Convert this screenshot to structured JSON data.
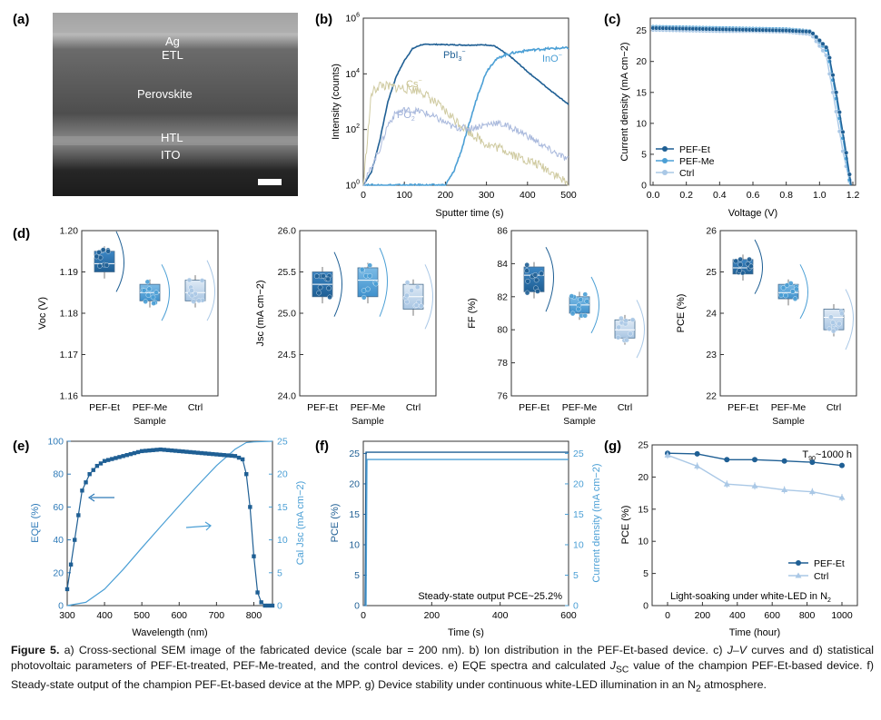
{
  "colors": {
    "etDark": "#1f5f94",
    "et": "#2e7ab8",
    "me": "#4b9fd5",
    "ctrl": "#aac8e6",
    "cs": "#cfcaa0",
    "po2": "#a8b8dc"
  },
  "panels": {
    "a": {
      "letter": "(a)",
      "layers": [
        "Ag",
        "ETL",
        "Perovskite",
        "HTL",
        "ITO"
      ]
    },
    "b": {
      "letter": "(b)",
      "xlabel": "Sputter time (s)",
      "ylabel": "Intensity (counts)",
      "xticks": [
        "0",
        "100",
        "200",
        "300",
        "400",
        "500"
      ],
      "yticks": [
        {
          "base": "10",
          "exp": "0"
        },
        {
          "base": "10",
          "exp": "2"
        },
        {
          "base": "10",
          "exp": "4"
        },
        {
          "base": "10",
          "exp": "6"
        }
      ],
      "labels": {
        "pbi": "PbI",
        "pbi_sub": "3",
        "pbi_sup": "−",
        "ino": "InO",
        "ino_sup": "−",
        "cs": "Cs",
        "cs_sup": "−",
        "po": "PO",
        "po_sub": "2",
        "po_sup": "−"
      }
    },
    "c": {
      "letter": "(c)",
      "xlabel": "Voltage (V)",
      "ylabel": "Current density (mA cm−2)",
      "xticks": [
        "0.0",
        "0.2",
        "0.4",
        "0.6",
        "0.8",
        "1.0",
        "1.2"
      ],
      "yticks": [
        "0",
        "5",
        "10",
        "15",
        "20",
        "25"
      ],
      "legend": [
        "PEF-Et",
        "PEF-Me",
        "Ctrl"
      ]
    },
    "d": {
      "letter": "(d)",
      "xlabel": "Sample",
      "cats": [
        "PEF-Et",
        "PEF-Me",
        "Ctrl"
      ],
      "voc": {
        "ylabel": "Voc (V)",
        "yticks": [
          "1.16",
          "1.17",
          "1.18",
          "1.19",
          "1.20"
        ]
      },
      "jsc": {
        "ylabel": "Jsc (mA cm−2)",
        "yticks": [
          "24.0",
          "24.5",
          "25.0",
          "25.5",
          "26.0"
        ]
      },
      "ff": {
        "ylabel": "FF (%)",
        "yticks": [
          "76",
          "78",
          "80",
          "82",
          "84",
          "86"
        ]
      },
      "pce": {
        "ylabel": "PCE (%)",
        "yticks": [
          "22",
          "23",
          "24",
          "25",
          "26"
        ]
      }
    },
    "e": {
      "letter": "(e)",
      "xlabel": "Wavelength (nm)",
      "ylabel": "EQE (%)",
      "ylabel2": "Cal Jsc (mA cm−2)",
      "xticks": [
        "300",
        "400",
        "500",
        "600",
        "700",
        "800"
      ],
      "yticks": [
        "0",
        "20",
        "40",
        "60",
        "80",
        "100"
      ],
      "y2ticks": [
        "0",
        "5",
        "10",
        "15",
        "20",
        "25"
      ]
    },
    "f": {
      "letter": "(f)",
      "xlabel": "Time (s)",
      "ylabel": "PCE (%)",
      "ylabel2": "Current density (mA cm−2)",
      "xticks": [
        "0",
        "200",
        "400",
        "600"
      ],
      "yticks": [
        "0",
        "5",
        "10",
        "15",
        "20",
        "25"
      ],
      "y2ticks": [
        "0",
        "5",
        "10",
        "15",
        "20",
        "25"
      ],
      "note": "Steady-state output PCE~25.2%"
    },
    "g": {
      "letter": "(g)",
      "xlabel": "Time (hour)",
      "ylabel": "PCE (%)",
      "xticks": [
        "0",
        "200",
        "400",
        "600",
        "800",
        "1000"
      ],
      "yticks": [
        "0",
        "5",
        "10",
        "15",
        "20",
        "25"
      ],
      "t90": "T",
      "t90_sub": "90",
      "t90_rest": "~1000 h",
      "legend": [
        "PEF-Et",
        "Ctrl"
      ],
      "note": "Light-soaking under white-LED in N",
      "note_sub": "2"
    }
  },
  "chart_data": [
    {
      "panel": "b",
      "type": "line",
      "x_range": [
        0,
        500
      ],
      "y_scale": "log",
      "y_range": [
        1,
        1000000
      ],
      "series": [
        {
          "name": "PbI3−",
          "x": [
            0,
            20,
            40,
            60,
            80,
            100,
            120,
            140,
            160,
            200,
            250,
            300,
            320,
            360,
            400,
            450,
            500
          ],
          "y": [
            1,
            3,
            40,
            1000,
            8000,
            30000,
            80000,
            110000,
            115000,
            112000,
            108000,
            110000,
            100000,
            40000,
            12000,
            3000,
            800
          ]
        },
        {
          "name": "InO−",
          "x": [
            0,
            200,
            220,
            240,
            260,
            280,
            300,
            320,
            340,
            360,
            400,
            450,
            500
          ],
          "y": [
            1,
            1,
            3,
            20,
            200,
            2000,
            12000,
            30000,
            45000,
            55000,
            70000,
            80000,
            85000
          ]
        },
        {
          "name": "Cs−",
          "x": [
            0,
            20,
            40,
            60,
            100,
            140,
            180,
            220,
            260,
            300,
            340,
            380,
            420,
            460,
            500
          ],
          "y": [
            1,
            2000,
            4000,
            3500,
            3000,
            2500,
            800,
            250,
            80,
            30,
            20,
            10,
            6,
            3,
            1
          ]
        },
        {
          "name": "PO2−",
          "x": [
            0,
            40,
            60,
            80,
            100,
            140,
            180,
            220,
            260,
            300,
            320,
            360,
            400,
            450,
            500
          ],
          "y": [
            1,
            20,
            150,
            400,
            500,
            450,
            250,
            120,
            110,
            150,
            180,
            120,
            60,
            20,
            8
          ]
        }
      ]
    },
    {
      "panel": "c",
      "type": "line",
      "x_range": [
        0,
        1.2
      ],
      "y_range": [
        0,
        27
      ],
      "series": [
        {
          "name": "PEF-Et",
          "x": [
            0,
            0.2,
            0.4,
            0.6,
            0.8,
            0.95,
            1.05,
            1.1,
            1.15,
            1.19
          ],
          "y": [
            25.4,
            25.3,
            25.2,
            25.1,
            25.0,
            24.8,
            22.0,
            15.0,
            7.0,
            0
          ]
        },
        {
          "name": "PEF-Me",
          "x": [
            0,
            0.2,
            0.4,
            0.6,
            0.8,
            0.95,
            1.05,
            1.1,
            1.15,
            1.185
          ],
          "y": [
            25.6,
            25.5,
            25.4,
            25.3,
            25.2,
            24.9,
            21.5,
            14.0,
            6.0,
            0
          ]
        },
        {
          "name": "Ctrl",
          "x": [
            0,
            0.2,
            0.4,
            0.6,
            0.8,
            0.95,
            1.04,
            1.09,
            1.14,
            1.185
          ],
          "y": [
            25.1,
            25.0,
            24.9,
            24.9,
            24.8,
            24.4,
            21.0,
            13.5,
            5.5,
            0
          ]
        }
      ]
    },
    {
      "panel": "d-voc",
      "type": "box",
      "categories": [
        "PEF-Et",
        "PEF-Me",
        "Ctrl"
      ],
      "y_range": [
        1.16,
        1.2
      ],
      "medians": [
        1.192,
        1.185,
        1.185
      ],
      "q1": [
        1.19,
        1.183,
        1.183
      ],
      "q3": [
        1.195,
        1.187,
        1.188
      ]
    },
    {
      "panel": "d-jsc",
      "type": "box",
      "categories": [
        "PEF-Et",
        "PEF-Me",
        "Ctrl"
      ],
      "y_range": [
        24,
        26
      ],
      "medians": [
        25.35,
        25.4,
        25.2
      ],
      "q1": [
        25.2,
        25.2,
        25.05
      ],
      "q3": [
        25.5,
        25.55,
        25.35
      ]
    },
    {
      "panel": "d-ff",
      "type": "box",
      "categories": [
        "PEF-Et",
        "PEF-Me",
        "Ctrl"
      ],
      "y_range": [
        76,
        86
      ],
      "medians": [
        83.3,
        81.5,
        80
      ],
      "q1": [
        82.3,
        81,
        79.5
      ],
      "q3": [
        83.8,
        82,
        80.6
      ]
    },
    {
      "panel": "d-pce",
      "type": "box",
      "categories": [
        "PEF-Et",
        "PEF-Me",
        "Ctrl"
      ],
      "y_range": [
        22,
        26
      ],
      "medians": [
        25.1,
        24.5,
        23.9
      ],
      "q1": [
        24.95,
        24.35,
        23.6
      ],
      "q3": [
        25.3,
        24.7,
        24.1
      ]
    },
    {
      "panel": "e",
      "type": "line",
      "x_range": [
        300,
        850
      ],
      "y_range": [
        0,
        100
      ],
      "series": [
        {
          "name": "EQE",
          "x": [
            300,
            320,
            340,
            360,
            380,
            400,
            450,
            500,
            550,
            600,
            650,
            700,
            750,
            770,
            780,
            790,
            800,
            810,
            820,
            830,
            850
          ],
          "y": [
            10,
            40,
            70,
            80,
            85,
            88,
            91,
            94,
            95,
            94,
            93,
            92,
            91,
            89,
            80,
            60,
            30,
            8,
            2,
            0,
            0
          ]
        },
        {
          "name": "Cal Jsc",
          "axis": "right",
          "y_range": [
            0,
            25
          ],
          "x": [
            300,
            350,
            400,
            450,
            500,
            550,
            600,
            650,
            700,
            750,
            780,
            800,
            850
          ],
          "y": [
            0,
            0.5,
            2.5,
            5.5,
            8.8,
            12,
            15.2,
            18.3,
            21.3,
            23.8,
            24.8,
            24.9,
            25
          ]
        }
      ]
    },
    {
      "panel": "f",
      "type": "line",
      "x_range": [
        0,
        600
      ],
      "y_range": [
        0,
        27
      ],
      "series": [
        {
          "name": "PCE",
          "x": [
            0,
            600
          ],
          "y": [
            25.2,
            25.2
          ]
        },
        {
          "name": "Current density",
          "axis": "right",
          "x": [
            0,
            600
          ],
          "y": [
            24.0,
            24.0
          ]
        }
      ]
    },
    {
      "panel": "g",
      "type": "line",
      "x_range": [
        0,
        1000
      ],
      "y_range": [
        0,
        25
      ],
      "series": [
        {
          "name": "PEF-Et",
          "x": [
            0,
            170,
            340,
            500,
            670,
            830,
            1000
          ],
          "y": [
            23.7,
            23.6,
            22.7,
            22.7,
            22.5,
            22.3,
            21.8
          ]
        },
        {
          "name": "Ctrl",
          "x": [
            0,
            170,
            340,
            500,
            670,
            830,
            1000
          ],
          "y": [
            23.4,
            21.7,
            18.9,
            18.6,
            18.0,
            17.7,
            16.8
          ]
        }
      ]
    }
  ],
  "caption": {
    "fig": "Figure 5.",
    "p1": " a) Cross-sectional SEM image of the fabricated device (scale bar = 200 nm). b) Ion distribution in the PEF-Et-based device. c) ",
    "jv": "J–V",
    "p2": " curves and d) statistical photovoltaic parameters of PEF-Et-treated, PEF-Me-treated, and the control devices. e) EQE spectra and calculated ",
    "j": "J",
    "jsub": "SC",
    "p3": " value of the champion PEF-Et-based device. f) Steady-state output of the champion PEF-Et-based device at the MPP. g) Device stability under continuous white-LED illumination in an N",
    "n2": "2",
    "p4": " atmosphere."
  }
}
